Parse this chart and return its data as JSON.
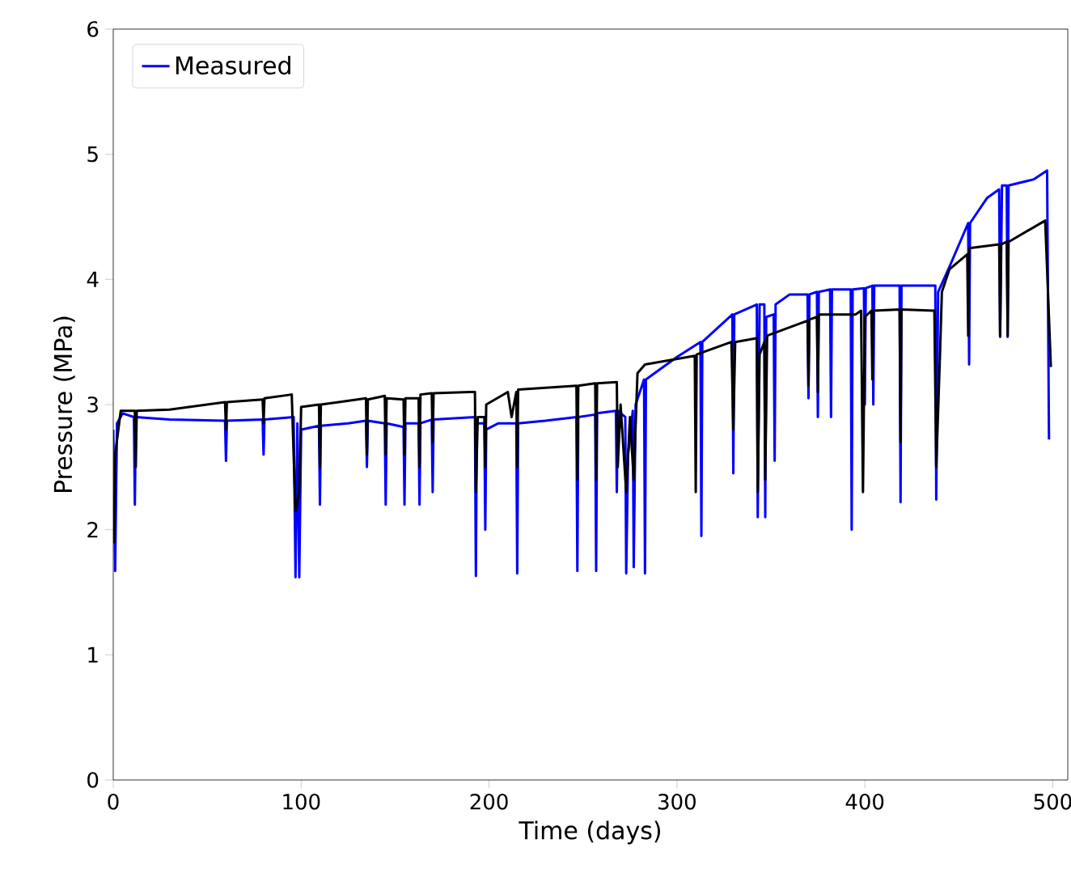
{
  "chart_data": {
    "type": "line",
    "xlabel": "Time (days)",
    "ylabel": "Pressure (MPa)",
    "xlim": [
      0,
      508
    ],
    "xticks": [
      0,
      100,
      200,
      300,
      400,
      500
    ],
    "ylim": [
      0,
      6
    ],
    "yticks": [
      0,
      1,
      2,
      3,
      4,
      5,
      6
    ],
    "grid": false,
    "legend": "top left",
    "marker": "none",
    "line_style": "solid",
    "series": [
      {
        "name": "Measured",
        "color": "#0000ff",
        "x": [
          0,
          1,
          2,
          5,
          11,
          11.5,
          12,
          30,
          59.5,
          60,
          60.5,
          79.5,
          80,
          80.5,
          96,
          97,
          98,
          99,
          100,
          109.5,
          110,
          110.5,
          125,
          134.5,
          135,
          135.5,
          144.5,
          145,
          145.5,
          154.5,
          155,
          155.5,
          162.5,
          163,
          163.5,
          169.5,
          170,
          170.5,
          192.5,
          193,
          193.5,
          197.5,
          198,
          198.5,
          205,
          214.5,
          215,
          215.5,
          230,
          246.5,
          247,
          247.5,
          256.5,
          257,
          257.5,
          267.5,
          268,
          268.5,
          272.5,
          273,
          274,
          276.5,
          277,
          278,
          282.5,
          283,
          283.5,
          300,
          312.5,
          313,
          313.5,
          329.5,
          330,
          330.5,
          342.5,
          343,
          344,
          346.5,
          347,
          347.5,
          351.5,
          352,
          352.5,
          360,
          369.5,
          370,
          370.5,
          374.5,
          375,
          375.5,
          381.5,
          382,
          382.5,
          392.5,
          393,
          393.5,
          399.5,
          400,
          400.5,
          404,
          404.5,
          405,
          418.5,
          419,
          419.5,
          437.5,
          438,
          439,
          445,
          455,
          455.5,
          456,
          465,
          471.5,
          472,
          473,
          475.5,
          476,
          476.5,
          490,
          497,
          498
        ],
        "values": [
          2.8,
          1.67,
          2.85,
          2.93,
          2.9,
          2.2,
          2.9,
          2.88,
          2.87,
          2.55,
          2.87,
          2.88,
          2.6,
          2.88,
          2.9,
          1.62,
          2.85,
          1.62,
          2.8,
          2.83,
          2.2,
          2.83,
          2.85,
          2.87,
          2.5,
          2.87,
          2.85,
          2.2,
          2.85,
          2.82,
          2.2,
          2.85,
          2.85,
          2.2,
          2.85,
          2.88,
          2.3,
          2.88,
          2.9,
          1.63,
          2.85,
          2.85,
          2.0,
          2.8,
          2.85,
          2.85,
          1.65,
          2.85,
          2.87,
          2.9,
          1.67,
          2.9,
          2.92,
          1.67,
          2.93,
          2.95,
          2.3,
          2.95,
          2.9,
          1.65,
          2.6,
          2.95,
          1.7,
          3.0,
          3.2,
          1.65,
          3.2,
          3.38,
          3.5,
          1.95,
          3.5,
          3.72,
          2.45,
          3.72,
          3.8,
          2.1,
          3.8,
          3.8,
          2.1,
          3.7,
          3.72,
          2.55,
          3.8,
          3.88,
          3.88,
          3.05,
          3.88,
          3.9,
          2.9,
          3.9,
          3.92,
          2.9,
          3.92,
          3.92,
          2.0,
          3.92,
          3.93,
          3.0,
          3.93,
          3.95,
          3.0,
          3.95,
          3.95,
          2.22,
          3.95,
          3.95,
          2.24,
          3.9,
          4.1,
          4.45,
          3.32,
          4.45,
          4.65,
          4.72,
          3.54,
          4.75,
          4.75,
          3.54,
          4.75,
          4.8,
          4.87,
          2.72
        ]
      },
      {
        "color": "#000000",
        "x": [
          0,
          0.5,
          1,
          4,
          11.5,
          12,
          12.5,
          30,
          59.5,
          60,
          60.5,
          79.5,
          80,
          80.5,
          95,
          96,
          97,
          99,
          100,
          109.5,
          110,
          110.5,
          120,
          134.5,
          135,
          135.5,
          144.5,
          145,
          145.5,
          154.5,
          155,
          155.5,
          162.5,
          163,
          163.5,
          169.5,
          170,
          170.5,
          190,
          192.5,
          193,
          194,
          197.5,
          198,
          198.5,
          210,
          212,
          214.5,
          215,
          215.5,
          246.5,
          247,
          247.5,
          256.5,
          257,
          257.5,
          268,
          268.5,
          270,
          273,
          275,
          277,
          279,
          283,
          309.5,
          310,
          310.5,
          329,
          330,
          331,
          342.5,
          343,
          344,
          346.5,
          347,
          348,
          366,
          369.5,
          370,
          370.5,
          374.5,
          375,
          375.5,
          395,
          398,
          399,
          400,
          403.5,
          404,
          404.5,
          418.5,
          419,
          419.5,
          437,
          438,
          440,
          441,
          445,
          454.5,
          455,
          455.5,
          471.5,
          472,
          472.5,
          475.5,
          476,
          476.5,
          496,
          499
        ],
        "values": [
          2.3,
          1.9,
          2.6,
          2.95,
          2.95,
          2.5,
          2.95,
          2.96,
          3.02,
          2.8,
          3.02,
          3.04,
          2.85,
          3.05,
          3.08,
          2.6,
          2.15,
          2.3,
          2.98,
          3.0,
          2.5,
          3.0,
          3.02,
          3.05,
          2.6,
          3.04,
          3.07,
          2.6,
          3.05,
          3.04,
          2.6,
          3.05,
          3.05,
          2.5,
          3.08,
          3.09,
          2.7,
          3.09,
          3.1,
          3.1,
          2.3,
          2.9,
          2.9,
          2.5,
          3.0,
          3.1,
          2.9,
          3.1,
          2.5,
          3.12,
          3.15,
          2.4,
          3.15,
          3.17,
          2.4,
          3.17,
          3.18,
          2.5,
          3.0,
          2.3,
          2.9,
          2.4,
          3.25,
          3.32,
          3.39,
          2.3,
          3.4,
          3.5,
          2.8,
          3.5,
          3.53,
          2.3,
          3.4,
          3.5,
          2.4,
          3.55,
          3.65,
          3.67,
          3.15,
          3.68,
          3.7,
          3.1,
          3.72,
          3.72,
          3.75,
          2.3,
          3.7,
          3.75,
          3.2,
          3.75,
          3.76,
          2.7,
          3.76,
          3.75,
          2.5,
          3.4,
          3.9,
          4.08,
          4.2,
          3.55,
          4.25,
          4.28,
          3.55,
          4.28,
          4.3,
          3.55,
          4.3,
          4.47,
          3.3
        ]
      }
    ]
  }
}
